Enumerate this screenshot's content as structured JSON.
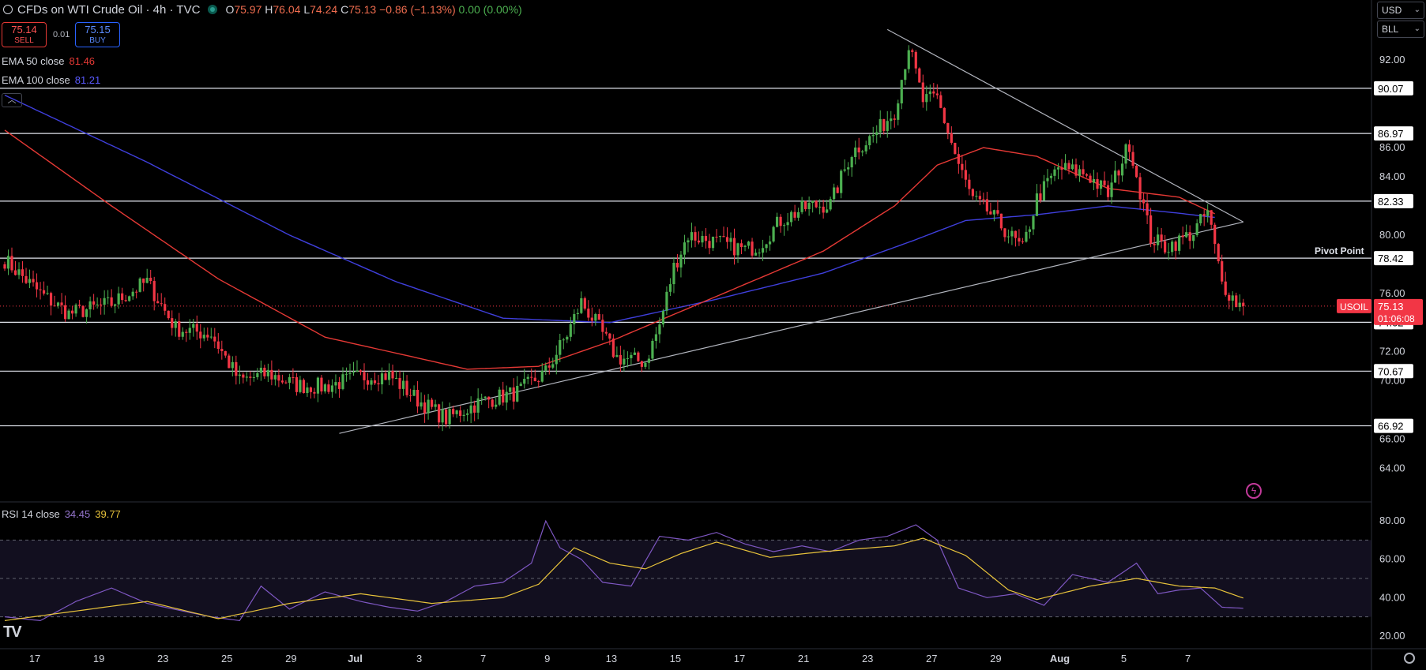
{
  "header": {
    "title": "CFDs on WTI Crude Oil · 4h · TVC",
    "o_label": "O",
    "o": "75.97",
    "h_label": "H",
    "h": "76.04",
    "l_label": "L",
    "l": "74.24",
    "c_label": "C",
    "c": "75.13",
    "change": "−0.86 (−1.13%)",
    "volume": "0.00 (0.00%)"
  },
  "trade": {
    "sell_price": "75.14",
    "sell_label": "SELL",
    "spread": "0.01",
    "buy_price": "75.15",
    "buy_label": "BUY"
  },
  "indicators": {
    "ema50_label": "EMA 50 close",
    "ema50_value": "81.46",
    "ema50_color": "#e53935",
    "ema100_label": "EMA 100 close",
    "ema100_value": "81.21",
    "ema100_color": "#3f3fdc",
    "rsi_label": "RSI 14 close",
    "rsi_value": "34.45",
    "rsi_ma_value": "39.77",
    "rsi_color": "#7e57c2",
    "rsi_ma_color": "#e8c33b"
  },
  "controls": {
    "currency": "USD",
    "unit": "BLL",
    "collapse_icon": "chevron-up-icon",
    "brand_icon": "tradingview-logo-icon",
    "bolt_icon": "lightning-icon",
    "settings_icon": "gear-icon"
  },
  "chart_data": {
    "type": "candlestick",
    "symbol_label": "USOIL",
    "last_price": "75.13",
    "countdown": "01:06:08",
    "up_color": "#4caf50",
    "down_color": "#f23645",
    "price_axis": {
      "range": [
        63.0,
        94.5
      ],
      "ticks": [
        "92.00",
        "86.00",
        "84.00",
        "80.00",
        "76.00",
        "72.00",
        "70.00",
        "66.00",
        "64.00"
      ]
    },
    "rsi_axis": {
      "range": [
        15,
        85
      ],
      "ticks": [
        "80.00",
        "60.00",
        "40.00",
        "20.00"
      ],
      "bands": [
        70,
        50,
        30
      ]
    },
    "x_axis": {
      "ticks": [
        "17",
        "19",
        "23",
        "25",
        "29",
        "Jul",
        "3",
        "7",
        "9",
        "13",
        "15",
        "17",
        "21",
        "23",
        "27",
        "29",
        "Aug",
        "5",
        "7"
      ]
    },
    "levels": [
      {
        "value": 90.07,
        "label": "90.07"
      },
      {
        "value": 86.97,
        "label": "86.97"
      },
      {
        "value": 82.33,
        "label": "82.33"
      },
      {
        "value": 78.42,
        "label": "78.42",
        "annotation": "Pivot Point"
      },
      {
        "value": 74.02,
        "label": "74.02"
      },
      {
        "value": 70.67,
        "label": "70.67"
      },
      {
        "value": 66.92,
        "label": "66.92"
      }
    ],
    "anchors": [
      [
        0,
        78.3
      ],
      [
        10,
        76.0
      ],
      [
        18,
        74.6
      ],
      [
        30,
        75.3
      ],
      [
        40,
        76.8
      ],
      [
        48,
        73.6
      ],
      [
        58,
        73.2
      ],
      [
        66,
        70.0
      ],
      [
        74,
        70.5
      ],
      [
        82,
        69.7
      ],
      [
        90,
        69.6
      ],
      [
        100,
        70.3
      ],
      [
        108,
        70.4
      ],
      [
        116,
        68.7
      ],
      [
        124,
        67.4
      ],
      [
        134,
        68.6
      ],
      [
        144,
        69.2
      ],
      [
        152,
        70.6
      ],
      [
        158,
        73.2
      ],
      [
        162,
        75.4
      ],
      [
        166,
        74.0
      ],
      [
        172,
        71.6
      ],
      [
        180,
        71.3
      ],
      [
        184,
        73.8
      ],
      [
        188,
        77.8
      ],
      [
        192,
        80.0
      ],
      [
        200,
        79.5
      ],
      [
        208,
        79.0
      ],
      [
        212,
        79.3
      ],
      [
        218,
        81.0
      ],
      [
        226,
        82.0
      ],
      [
        232,
        82.1
      ],
      [
        238,
        85.7
      ],
      [
        244,
        86.8
      ],
      [
        250,
        88.5
      ],
      [
        254,
        93.0
      ],
      [
        258,
        89.2
      ],
      [
        262,
        89.4
      ],
      [
        268,
        84.8
      ],
      [
        272,
        82.4
      ],
      [
        276,
        81.7
      ],
      [
        282,
        80.1
      ],
      [
        286,
        79.0
      ],
      [
        290,
        82.5
      ],
      [
        296,
        84.6
      ],
      [
        304,
        84.2
      ],
      [
        310,
        82.8
      ],
      [
        316,
        86.3
      ],
      [
        318,
        84.1
      ],
      [
        322,
        79.8
      ],
      [
        326,
        79.2
      ],
      [
        330,
        79.6
      ],
      [
        334,
        80.2
      ],
      [
        338,
        81.6
      ],
      [
        342,
        76.7
      ],
      [
        346,
        75.4
      ],
      [
        348,
        75.13
      ]
    ],
    "rsi_anchors": [
      [
        0,
        30
      ],
      [
        10,
        28
      ],
      [
        20,
        38
      ],
      [
        30,
        45
      ],
      [
        40,
        37
      ],
      [
        50,
        33
      ],
      [
        58,
        30
      ],
      [
        66,
        28
      ],
      [
        72,
        46
      ],
      [
        80,
        34
      ],
      [
        90,
        43
      ],
      [
        100,
        38
      ],
      [
        108,
        35
      ],
      [
        116,
        33
      ],
      [
        124,
        38
      ],
      [
        132,
        46
      ],
      [
        140,
        48
      ],
      [
        148,
        58
      ],
      [
        152,
        80
      ],
      [
        156,
        66
      ],
      [
        162,
        60
      ],
      [
        168,
        48
      ],
      [
        176,
        46
      ],
      [
        184,
        72
      ],
      [
        192,
        70
      ],
      [
        200,
        74
      ],
      [
        208,
        68
      ],
      [
        216,
        64
      ],
      [
        224,
        67
      ],
      [
        232,
        64
      ],
      [
        240,
        70
      ],
      [
        248,
        72
      ],
      [
        256,
        78
      ],
      [
        262,
        70
      ],
      [
        268,
        45
      ],
      [
        276,
        40
      ],
      [
        284,
        42
      ],
      [
        292,
        36
      ],
      [
        300,
        52
      ],
      [
        310,
        48
      ],
      [
        318,
        58
      ],
      [
        324,
        42
      ],
      [
        330,
        44
      ],
      [
        336,
        45
      ],
      [
        342,
        35
      ],
      [
        348,
        34.45
      ]
    ],
    "rsi_ma_anchors": [
      [
        0,
        28
      ],
      [
        20,
        33
      ],
      [
        40,
        38
      ],
      [
        60,
        29
      ],
      [
        80,
        37
      ],
      [
        100,
        42
      ],
      [
        120,
        37
      ],
      [
        140,
        40
      ],
      [
        150,
        47
      ],
      [
        160,
        66
      ],
      [
        170,
        58
      ],
      [
        180,
        55
      ],
      [
        190,
        63
      ],
      [
        200,
        69
      ],
      [
        215,
        61
      ],
      [
        230,
        64
      ],
      [
        250,
        67
      ],
      [
        258,
        71
      ],
      [
        270,
        62
      ],
      [
        282,
        44
      ],
      [
        290,
        39
      ],
      [
        305,
        46
      ],
      [
        318,
        50
      ],
      [
        330,
        46
      ],
      [
        340,
        45
      ],
      [
        348,
        39.77
      ]
    ],
    "ema50_anchors": [
      [
        0,
        87.2
      ],
      [
        30,
        82.0
      ],
      [
        60,
        77.0
      ],
      [
        90,
        73.0
      ],
      [
        130,
        70.8
      ],
      [
        150,
        71.0
      ],
      [
        170,
        72.7
      ],
      [
        200,
        75.8
      ],
      [
        230,
        78.9
      ],
      [
        250,
        82.0
      ],
      [
        262,
        84.8
      ],
      [
        275,
        86.0
      ],
      [
        290,
        85.4
      ],
      [
        310,
        83.2
      ],
      [
        330,
        82.6
      ],
      [
        340,
        81.46
      ]
    ],
    "ema100_anchors": [
      [
        0,
        89.6
      ],
      [
        40,
        85.0
      ],
      [
        80,
        80.0
      ],
      [
        110,
        76.8
      ],
      [
        140,
        74.3
      ],
      [
        170,
        74.0
      ],
      [
        200,
        75.6
      ],
      [
        230,
        77.4
      ],
      [
        255,
        79.6
      ],
      [
        270,
        81.0
      ],
      [
        290,
        81.4
      ],
      [
        310,
        82.0
      ],
      [
        330,
        81.5
      ],
      [
        340,
        81.21
      ]
    ],
    "trendlines": [
      {
        "from": [
          94,
          66.4
        ],
        "to": [
          348,
          80.9
        ]
      },
      {
        "from": [
          248,
          94.1
        ],
        "to": [
          348,
          80.9
        ]
      }
    ]
  }
}
